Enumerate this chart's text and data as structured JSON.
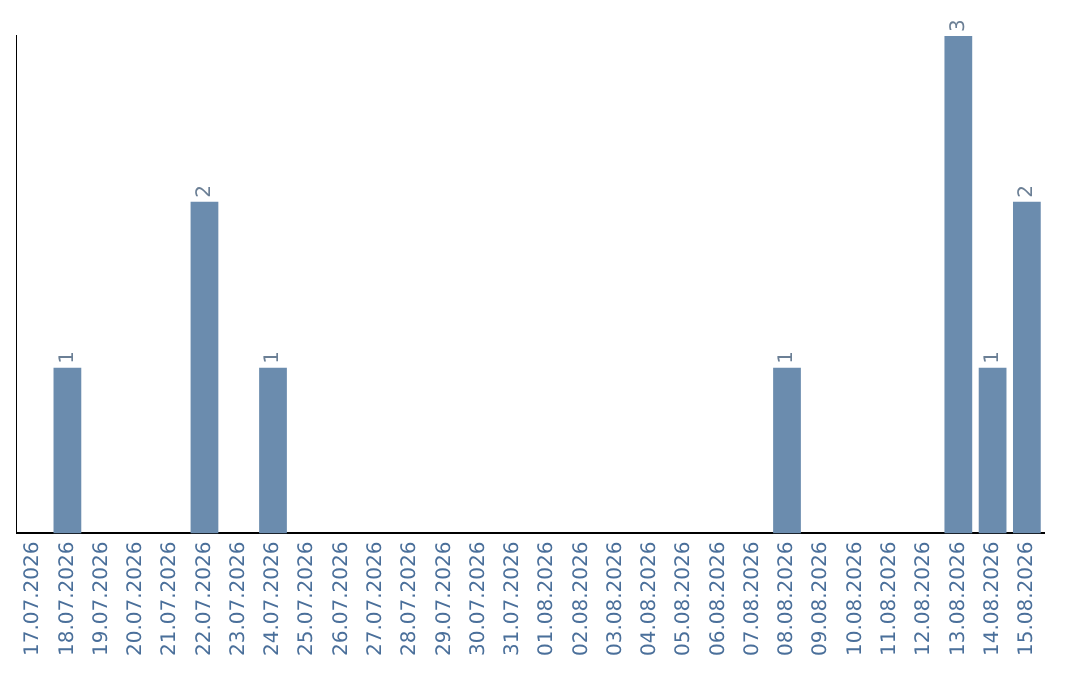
{
  "chart_data": {
    "type": "bar",
    "categories": [
      "17.07.2026",
      "18.07.2026",
      "19.07.2026",
      "20.07.2026",
      "21.07.2026",
      "22.07.2026",
      "23.07.2026",
      "24.07.2026",
      "25.07.2026",
      "26.07.2026",
      "27.07.2026",
      "28.07.2026",
      "29.07.2026",
      "30.07.2026",
      "31.07.2026",
      "01.08.2026",
      "02.08.2026",
      "03.08.2026",
      "04.08.2026",
      "05.08.2026",
      "06.08.2026",
      "07.08.2026",
      "08.08.2026",
      "09.08.2026",
      "10.08.2026",
      "11.08.2026",
      "12.08.2026",
      "13.08.2026",
      "14.08.2026",
      "15.08.2026"
    ],
    "values": [
      0,
      1,
      0,
      0,
      0,
      2,
      0,
      1,
      0,
      0,
      0,
      0,
      0,
      0,
      0,
      0,
      0,
      0,
      0,
      0,
      0,
      0,
      1,
      0,
      0,
      0,
      0,
      3,
      1,
      2
    ],
    "value_labels": [
      null,
      "1",
      null,
      null,
      null,
      "2",
      null,
      "1",
      null,
      null,
      null,
      null,
      null,
      null,
      null,
      null,
      null,
      null,
      null,
      null,
      null,
      null,
      "1",
      null,
      null,
      null,
      null,
      "3",
      "1",
      "2"
    ],
    "color": "#6b8cae",
    "ylim": [
      0,
      3
    ],
    "tick_labels": "x",
    "grid": false,
    "legend": false
  }
}
